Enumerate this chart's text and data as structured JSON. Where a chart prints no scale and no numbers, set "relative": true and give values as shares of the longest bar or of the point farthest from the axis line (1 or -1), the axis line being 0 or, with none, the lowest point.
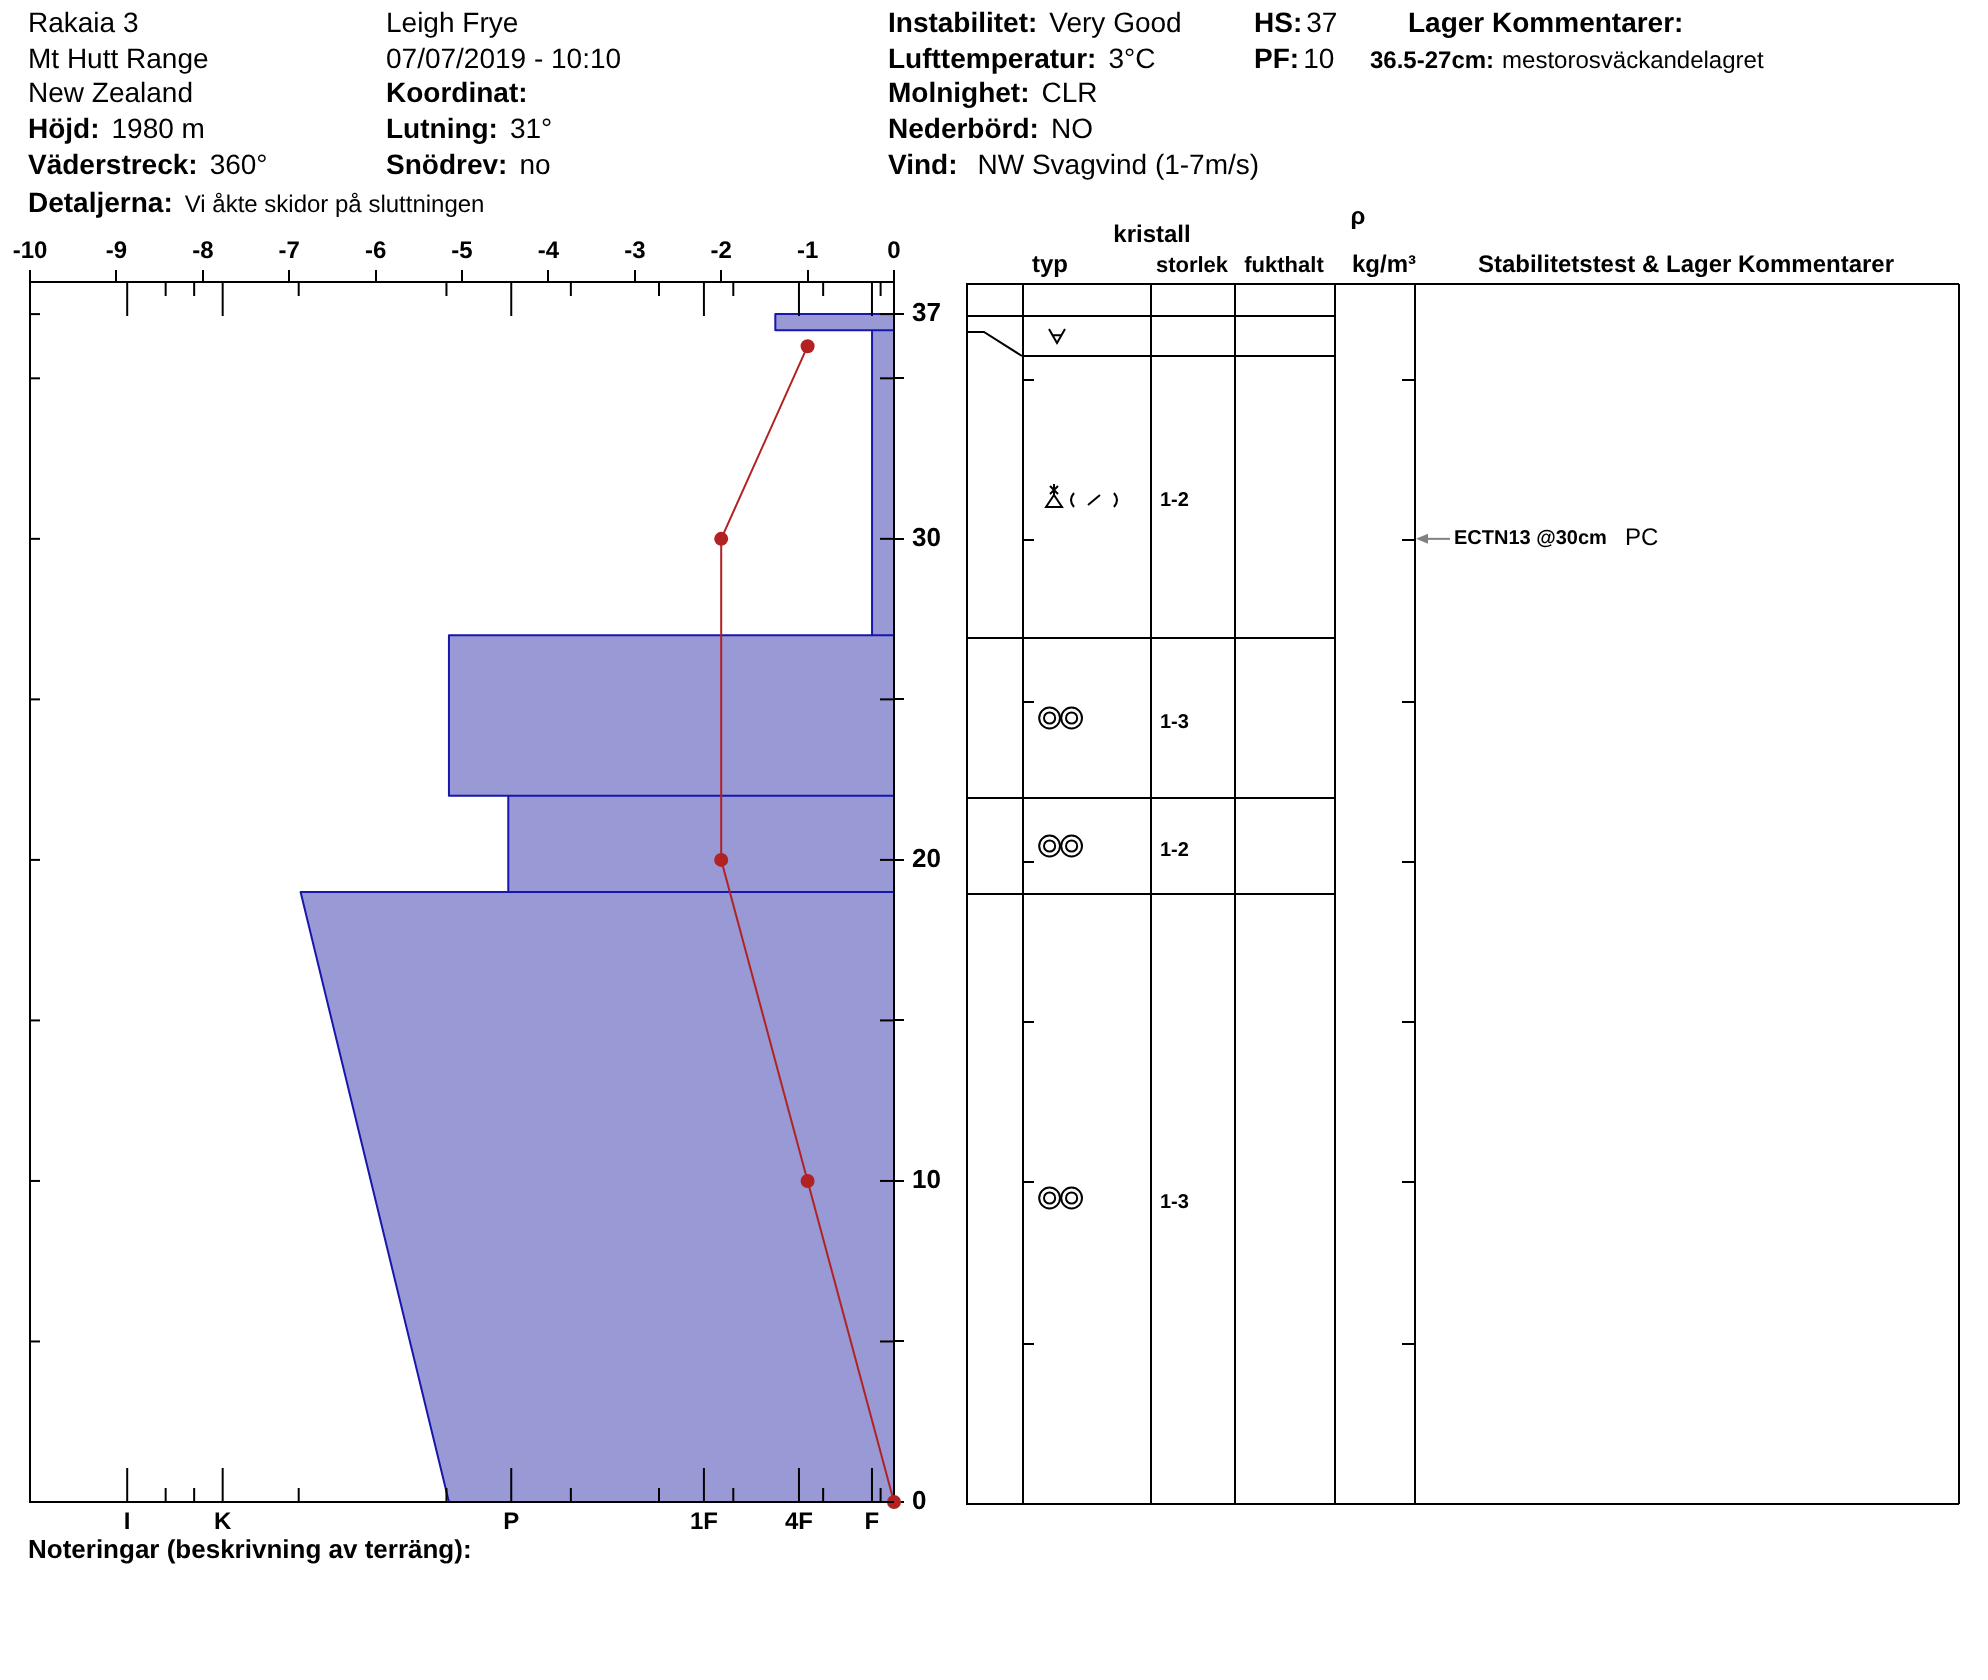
{
  "chart_data": [
    {
      "type": "line",
      "xlim": [
        -10,
        0
      ],
      "xticks": [
        -10,
        -9,
        -8,
        -7,
        -6,
        -5,
        -4,
        -3,
        -2,
        -1,
        0
      ],
      "ylim": [
        0,
        38
      ],
      "yticks": [
        0,
        {
          "value": 5,
          "label": null
        },
        10,
        {
          "value": 15,
          "label": null
        },
        20,
        {
          "value": 25,
          "label": null
        },
        30,
        {
          "value": 35,
          "label": null
        },
        37
      ],
      "series": [
        {
          "color": "#b22222",
          "marker": "circle",
          "x": [
            -1,
            -2,
            -2,
            -1,
            0
          ],
          "values": [
            36,
            30,
            20,
            10,
            0
          ]
        }
      ],
      "ref_lines": [
        {
          "axis": "y",
          "value": 30,
          "label": "ECTN13 @30cm",
          "color": "#808080"
        }
      ],
      "annotations": [
        "Rakaia 3",
        "Mt Hutt Range",
        "New Zealand",
        "Höjd:",
        "1980 m",
        "Väderstreck:",
        "360°",
        "Detaljerna:",
        "Vi åkte skidor på sluttningen",
        "Leigh Frye",
        "07/07/2019 - 10:10",
        "Koordinat:",
        "Lutning:",
        "31°",
        "Snödrev:",
        "no",
        "Instabilitet:",
        "Very Good",
        "Lufttemperatur:",
        "3°C",
        "Molnighet:",
        "CLR",
        "Nederbörd:",
        "NO",
        "Vind:",
        "NW Svagvind (1-7m/s)",
        "HS:",
        "37",
        "PF:",
        "10",
        "Lager Kommentarer:",
        "36.5-27cm:",
        "mestorosväckandelagret",
        "kristall",
        "typ",
        "storlek",
        "fukthalt",
        "ρ",
        "kg/m³",
        "Stabilitetstest & Lager Kommentarer",
        "1-2",
        "1-3",
        "1-2",
        "1-3",
        "PC",
        "Noteringar (beskrivning av terräng):"
      ]
    },
    {
      "type": "area",
      "orientation": "horizontal",
      "relative": true,
      "ylim": [
        0,
        38
      ],
      "series": [
        {
          "color": "#9999d6",
          "x": [
            37,
            37,
            36.5,
            36.5,
            36.5,
            27,
            27,
            27,
            22,
            22,
            22,
            19,
            19,
            19,
            0,
            0
          ],
          "values": [
            0,
            -0.2,
            -0.2,
            0,
            -0.037,
            -0.037,
            0,
            -0.75,
            -0.75,
            0,
            -0.65,
            -0.65,
            0,
            -1,
            -0.75,
            0
          ]
        }
      ],
      "annotations": [
        "I",
        "K",
        "P",
        "1F",
        "4F",
        "F"
      ]
    }
  ]
}
